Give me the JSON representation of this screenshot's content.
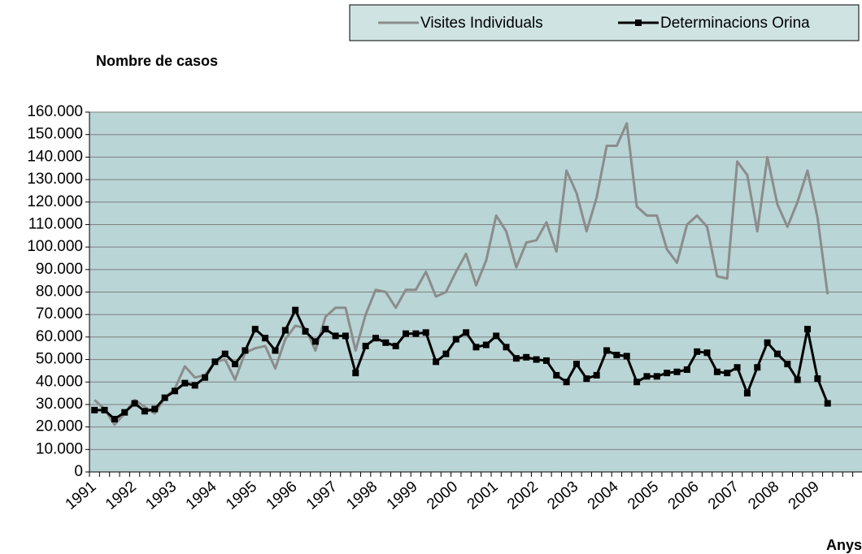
{
  "chart_data": {
    "type": "line",
    "y_label": "Nombre de casos",
    "x_label": "Anys",
    "categories": [
      "1991",
      null,
      null,
      null,
      "1992",
      null,
      null,
      null,
      "1993",
      null,
      null,
      null,
      "1994",
      null,
      null,
      null,
      "1995",
      null,
      null,
      null,
      "1996",
      null,
      null,
      null,
      "1997",
      null,
      null,
      null,
      "1998",
      null,
      null,
      null,
      "1999",
      null,
      null,
      null,
      "2000",
      null,
      null,
      null,
      "2001",
      null,
      null,
      null,
      "2002",
      null,
      null,
      null,
      "2003",
      null,
      null,
      null,
      "2004",
      null,
      null,
      null,
      "2005",
      null,
      null,
      null,
      "2006",
      null,
      null,
      null,
      "2007",
      null,
      null,
      null,
      "2008",
      null,
      null,
      null,
      "2009",
      null
    ],
    "series": [
      {
        "name": "Visites Individuals",
        "color": "#8c8c8c",
        "marker": false,
        "values": [
          32000,
          28000,
          21000,
          26000,
          32000,
          29000,
          26000,
          33000,
          37000,
          47000,
          42000,
          43000,
          49000,
          50000,
          41000,
          53000,
          55000,
          56000,
          46000,
          59000,
          65000,
          64000,
          54000,
          69000,
          73000,
          73000,
          54000,
          70000,
          81000,
          80000,
          73000,
          81000,
          81000,
          89000,
          78000,
          80000,
          89000,
          97000,
          83000,
          94000,
          114000,
          107000,
          91000,
          102000,
          103000,
          111000,
          98000,
          134000,
          124000,
          107000,
          122000,
          145000,
          145000,
          155000,
          118000,
          114000,
          114000,
          99000,
          93000,
          110000,
          114000,
          109000,
          87000,
          86000,
          138000,
          132000,
          107000,
          140000,
          119000,
          109000,
          120000,
          134000,
          113000,
          79000
        ]
      },
      {
        "name": "Determinacions Orina",
        "color": "#000000",
        "marker": true,
        "values": [
          27500,
          27500,
          23500,
          26500,
          30500,
          27000,
          28000,
          33000,
          36000,
          39500,
          38500,
          42000,
          49000,
          52500,
          48000,
          54000,
          63500,
          59500,
          54000,
          63000,
          72000,
          62500,
          58000,
          63500,
          60500,
          60500,
          44000,
          56000,
          59500,
          57500,
          56000,
          61500,
          61500,
          62000,
          49000,
          52500,
          59000,
          62000,
          55500,
          56500,
          60500,
          55500,
          50500,
          51000,
          50000,
          49500,
          43000,
          40000,
          48000,
          41500,
          43000,
          54000,
          52000,
          51500,
          40000,
          42500,
          42500,
          44000,
          44500,
          45500,
          53500,
          53000,
          44500,
          44000,
          46500,
          35000,
          46500,
          57500,
          52500,
          48000,
          41000,
          63500,
          41500,
          30500
        ]
      }
    ],
    "ylim": [
      0,
      160000
    ],
    "yticks": [
      0,
      {
        "value": 10000,
        "label": "10.000"
      },
      {
        "value": 20000,
        "label": "20.000"
      },
      {
        "value": 30000,
        "label": "30.000"
      },
      {
        "value": 40000,
        "label": "40.000"
      },
      {
        "value": 50000,
        "label": "50.000"
      },
      {
        "value": 60000,
        "label": "60.000"
      },
      {
        "value": 70000,
        "label": "70.000"
      },
      {
        "value": 80000,
        "label": "80.000"
      },
      {
        "value": 90000,
        "label": "90.000"
      },
      {
        "value": 100000,
        "label": "100.000"
      },
      {
        "value": 110000,
        "label": "110.000"
      },
      {
        "value": 120000,
        "label": "120.000"
      },
      {
        "value": 130000,
        "label": "130.000"
      },
      {
        "value": 140000,
        "label": "140.000"
      },
      {
        "value": 150000,
        "label": "150.000"
      },
      {
        "value": 160000,
        "label": "160.000"
      }
    ],
    "grid": true,
    "legend": "top"
  }
}
